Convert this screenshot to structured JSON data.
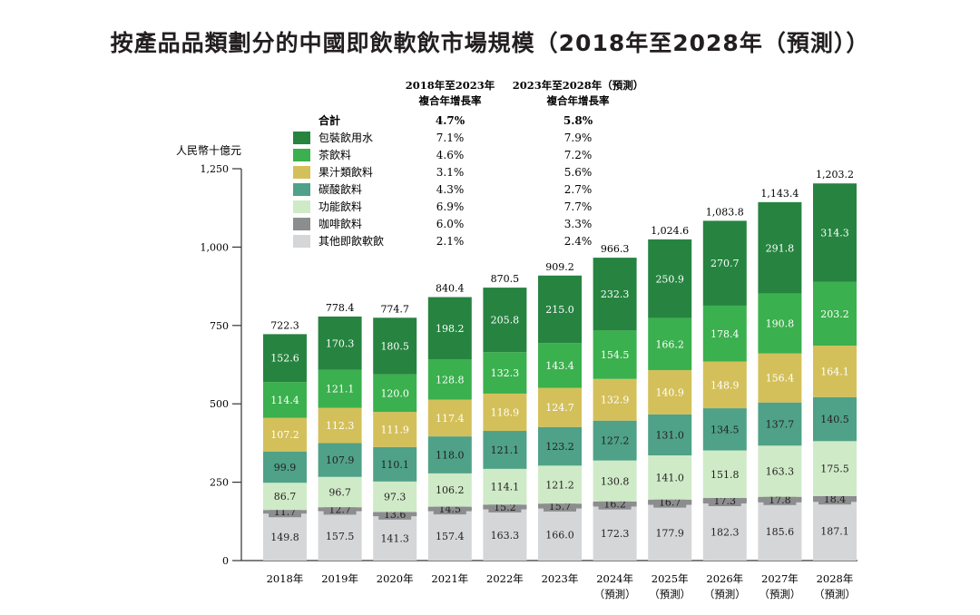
{
  "title": "按產品品類劃分的中國即飲軟飲市場規模（2018年至2028年（預測））",
  "chart_data": {
    "type": "bar",
    "stacked": true,
    "title": "按產品品類劃分的中國即飲軟飲市場規模（2018年至2028年（預測））",
    "ylabel": "人民幣十億元",
    "xlabel": "",
    "ylim": [
      0,
      1250
    ],
    "yticks": [
      0,
      250,
      500,
      750,
      1000,
      1250
    ],
    "ytick_labels": [
      "0",
      "250",
      "500",
      "750",
      "1,000",
      "1,250"
    ],
    "grid": false,
    "categories": [
      "2018年",
      "2019年",
      "2020年",
      "2021年",
      "2022年",
      "2023年",
      "2024年",
      "2025年",
      "2026年",
      "2027年",
      "2028年"
    ],
    "category_sublabels": [
      "",
      "",
      "",
      "",
      "",
      "",
      "（預測）",
      "（預測）",
      "（預測）",
      "（預測）",
      "（預測）"
    ],
    "totals": [
      722.3,
      778.4,
      774.7,
      840.4,
      870.5,
      909.2,
      966.3,
      1024.6,
      1083.8,
      1143.4,
      1203.2
    ],
    "total_labels": [
      "722.3",
      "778.4",
      "774.7",
      "840.4",
      "870.5",
      "909.2",
      "966.3",
      "1,024.6",
      "1,083.8",
      "1,143.4",
      "1,203.2"
    ],
    "series": [
      {
        "name": "其他即飲軟飲",
        "color": "#d5d6d8",
        "label_color": "#231f20",
        "values": [
          149.8,
          157.5,
          141.3,
          157.4,
          163.3,
          166.0,
          172.3,
          177.9,
          182.3,
          185.6,
          187.1
        ]
      },
      {
        "name": "咖啡飲料",
        "color": "#8c8d8f",
        "label_color": "#231f20",
        "values": [
          11.7,
          12.7,
          13.6,
          14.5,
          15.2,
          15.7,
          16.2,
          16.7,
          17.3,
          17.8,
          18.4
        ]
      },
      {
        "name": "功能飲料",
        "color": "#cfeac7",
        "label_color": "#231f20",
        "values": [
          86.7,
          96.7,
          97.3,
          106.2,
          114.1,
          121.2,
          130.8,
          141.0,
          151.8,
          163.3,
          175.5
        ]
      },
      {
        "name": "碳酸飲料",
        "color": "#4fa187",
        "label_color": "#231f20",
        "values": [
          99.9,
          107.9,
          110.1,
          118.0,
          121.1,
          123.2,
          127.2,
          131.0,
          134.5,
          137.7,
          140.5
        ]
      },
      {
        "name": "果汁類飲料",
        "color": "#d4c05a",
        "label_color": "#ffffff",
        "values": [
          107.2,
          112.3,
          111.9,
          117.4,
          118.9,
          124.7,
          132.9,
          140.9,
          148.9,
          156.4,
          164.1
        ]
      },
      {
        "name": "茶飲料",
        "color": "#3bb04e",
        "label_color": "#ffffff",
        "values": [
          114.4,
          121.1,
          120.0,
          128.8,
          132.3,
          143.4,
          154.5,
          166.2,
          178.4,
          190.8,
          203.2
        ]
      },
      {
        "name": "包裝飲用水",
        "color": "#268440",
        "label_color": "#ffffff",
        "values": [
          152.6,
          170.3,
          180.5,
          198.2,
          205.8,
          215.0,
          232.3,
          250.9,
          270.7,
          291.8,
          314.3
        ]
      }
    ],
    "legend": {
      "placement": "top-left",
      "col_headers": [
        {
          "line1": "2018年至2023年",
          "line2": "複合年增長率"
        },
        {
          "line1": "2023年至2028年（預測）",
          "line2": "複合年增長率"
        }
      ],
      "rows": [
        {
          "name": "合計",
          "swatch": null,
          "cagr_2018_2023": "4.7%",
          "cagr_2023_2028": "5.8%",
          "bold": true
        },
        {
          "name": "包裝飲用水",
          "swatch": "#268440",
          "cagr_2018_2023": "7.1%",
          "cagr_2023_2028": "7.9%"
        },
        {
          "name": "茶飲料",
          "swatch": "#3bb04e",
          "cagr_2018_2023": "4.6%",
          "cagr_2023_2028": "7.2%"
        },
        {
          "name": "果汁類飲料",
          "swatch": "#d4c05a",
          "cagr_2018_2023": "3.1%",
          "cagr_2023_2028": "5.6%"
        },
        {
          "name": "碳酸飲料",
          "swatch": "#4fa187",
          "cagr_2018_2023": "4.3%",
          "cagr_2023_2028": "2.7%"
        },
        {
          "name": "功能飲料",
          "swatch": "#cfeac7",
          "cagr_2018_2023": "6.9%",
          "cagr_2023_2028": "7.7%"
        },
        {
          "name": "咖啡飲料",
          "swatch": "#8c8d8f",
          "cagr_2018_2023": "6.0%",
          "cagr_2023_2028": "3.3%"
        },
        {
          "name": "其他即飲軟飲",
          "swatch": "#d5d6d8",
          "cagr_2018_2023": "2.1%",
          "cagr_2023_2028": "2.4%"
        }
      ]
    }
  }
}
